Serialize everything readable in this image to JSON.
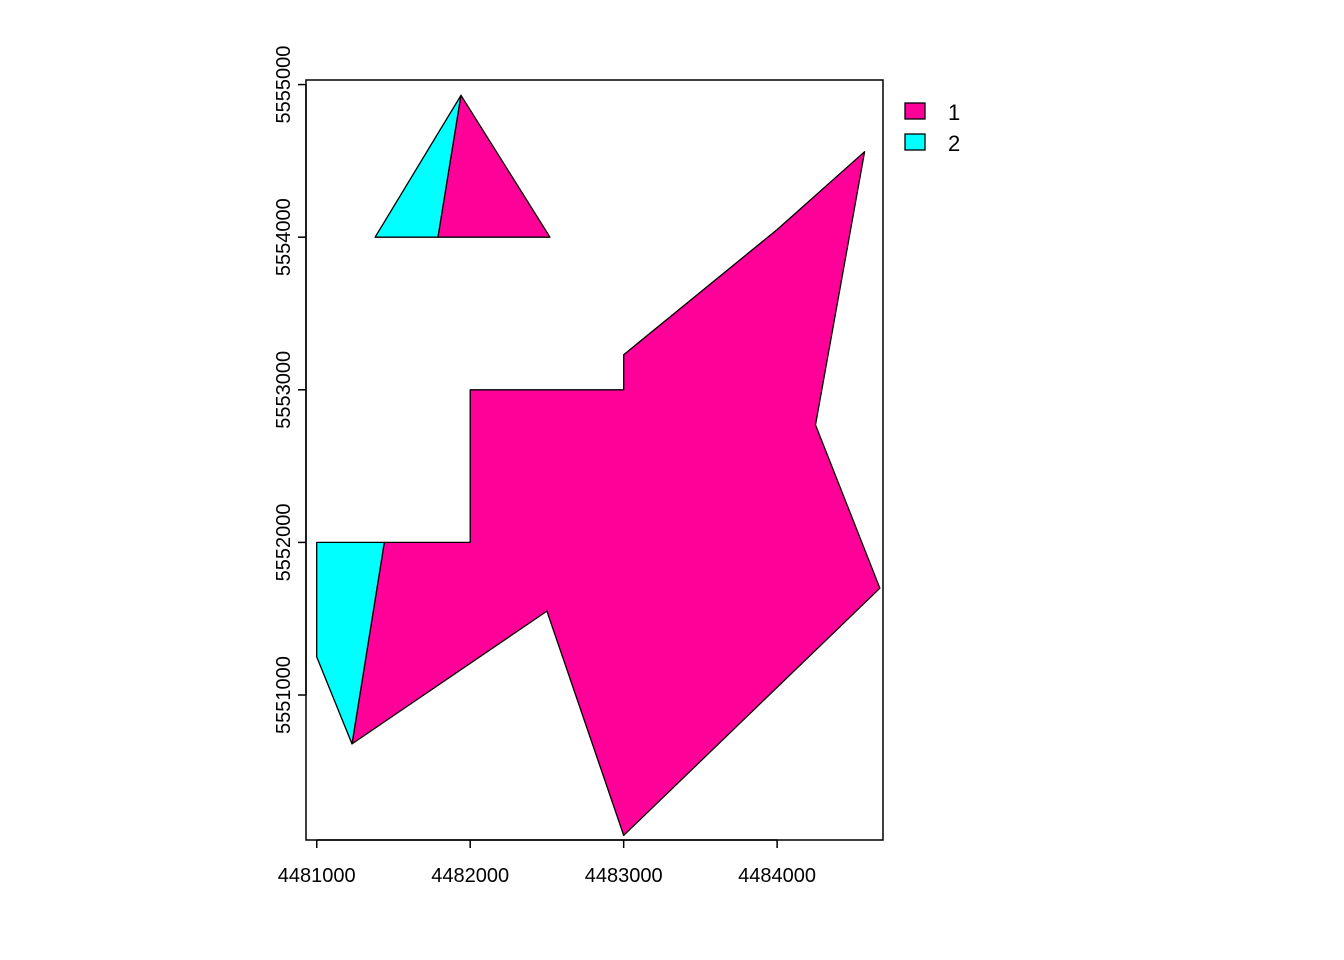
{
  "chart_data": {
    "type": "map",
    "x_ticks": [
      4481000,
      4482000,
      4483000,
      4484000
    ],
    "y_ticks": [
      5551000,
      5552000,
      5553000,
      5554000,
      5555000
    ],
    "x_tick_labels": [
      "4481000",
      "4482000",
      "4483000",
      "4484000"
    ],
    "y_tick_labels": [
      "5551000",
      "5552000",
      "5553000",
      "5554000",
      "5555000"
    ],
    "xlim": [
      4480930,
      4484690
    ],
    "ylim": [
      5550050,
      5555030
    ],
    "legend": {
      "position": "top-right-outside",
      "entries": [
        {
          "label": "1",
          "color": "#FF0099"
        },
        {
          "label": "2",
          "color": "#00FFFF"
        }
      ]
    },
    "polygons": [
      {
        "class": "1",
        "name": "large-polygon-class-1",
        "coords": [
          [
            4481440,
            5552000
          ],
          [
            4482000,
            5552000
          ],
          [
            4482000,
            5553000
          ],
          [
            4483000,
            5553000
          ],
          [
            4483000,
            5553230
          ],
          [
            4484000,
            5554050
          ],
          [
            4484570,
            5554560
          ],
          [
            4484250,
            5552770
          ],
          [
            4484670,
            5551700
          ],
          [
            4483000,
            5550080
          ],
          [
            4482500,
            5551550
          ],
          [
            4481230,
            5550680
          ]
        ]
      },
      {
        "class": "2",
        "name": "small-polygon-class-2",
        "coords": [
          [
            4481000,
            5552000
          ],
          [
            4481440,
            5552000
          ],
          [
            4481230,
            5550680
          ],
          [
            4481000,
            5551250
          ]
        ]
      },
      {
        "class": "2",
        "name": "triangle-left-class-2",
        "coords": [
          [
            4481380,
            5554000
          ],
          [
            4481940,
            5554930
          ],
          [
            4481790,
            5554000
          ]
        ]
      },
      {
        "class": "1",
        "name": "triangle-right-class-1",
        "coords": [
          [
            4481790,
            5554000
          ],
          [
            4481940,
            5554930
          ],
          [
            4482520,
            5554000
          ]
        ]
      }
    ]
  }
}
